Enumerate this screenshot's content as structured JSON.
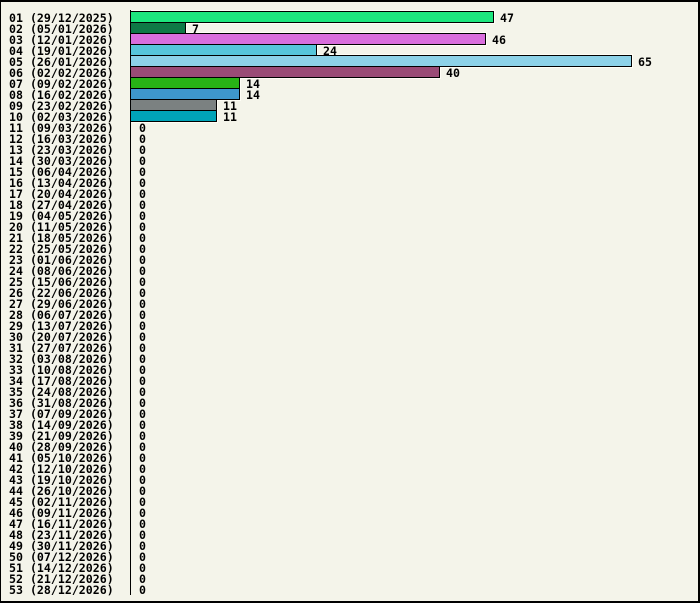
{
  "chart_data": {
    "type": "bar",
    "orientation": "horizontal",
    "title": "",
    "xlabel": "",
    "ylabel": "",
    "x_range_units": [
      0,
      65
    ],
    "grid": "off",
    "legend": "none",
    "categories": [
      "01 (29/12/2025)",
      "02 (05/01/2026)",
      "03 (12/01/2026)",
      "04 (19/01/2026)",
      "05 (26/01/2026)",
      "06 (02/02/2026)",
      "07 (09/02/2026)",
      "08 (16/02/2026)",
      "09 (23/02/2026)",
      "10 (02/03/2026)",
      "11 (09/03/2026)",
      "12 (16/03/2026)",
      "13 (23/03/2026)",
      "14 (30/03/2026)",
      "15 (06/04/2026)",
      "16 (13/04/2026)",
      "17 (20/04/2026)",
      "18 (27/04/2026)",
      "19 (04/05/2026)",
      "20 (11/05/2026)",
      "21 (18/05/2026)",
      "22 (25/05/2026)",
      "23 (01/06/2026)",
      "24 (08/06/2026)",
      "25 (15/06/2026)",
      "26 (22/06/2026)",
      "27 (29/06/2026)",
      "28 (06/07/2026)",
      "29 (13/07/2026)",
      "30 (20/07/2026)",
      "31 (27/07/2026)",
      "32 (03/08/2026)",
      "33 (10/08/2026)",
      "34 (17/08/2026)",
      "35 (24/08/2026)",
      "36 (31/08/2026)",
      "37 (07/09/2026)",
      "38 (14/09/2026)",
      "39 (21/09/2026)",
      "40 (28/09/2026)",
      "41 (05/10/2026)",
      "42 (12/10/2026)",
      "43 (19/10/2026)",
      "44 (26/10/2026)",
      "45 (02/11/2026)",
      "46 (09/11/2026)",
      "47 (16/11/2026)",
      "48 (23/11/2026)",
      "49 (30/11/2026)",
      "50 (07/12/2026)",
      "51 (14/12/2026)",
      "52 (21/12/2026)",
      "53 (28/12/2026)"
    ],
    "week_numbers": [
      "01",
      "02",
      "03",
      "04",
      "05",
      "06",
      "07",
      "08",
      "09",
      "10",
      "11",
      "12",
      "13",
      "14",
      "15",
      "16",
      "17",
      "18",
      "19",
      "20",
      "21",
      "22",
      "23",
      "24",
      "25",
      "26",
      "27",
      "28",
      "29",
      "30",
      "31",
      "32",
      "33",
      "34",
      "35",
      "36",
      "37",
      "38",
      "39",
      "40",
      "41",
      "42",
      "43",
      "44",
      "45",
      "46",
      "47",
      "48",
      "49",
      "50",
      "51",
      "52",
      "53"
    ],
    "week_start_dates": [
      "29/12/2025",
      "05/01/2026",
      "12/01/2026",
      "19/01/2026",
      "26/01/2026",
      "02/02/2026",
      "09/02/2026",
      "16/02/2026",
      "23/02/2026",
      "02/03/2026",
      "09/03/2026",
      "16/03/2026",
      "23/03/2026",
      "30/03/2026",
      "06/04/2026",
      "13/04/2026",
      "20/04/2026",
      "27/04/2026",
      "04/05/2026",
      "11/05/2026",
      "18/05/2026",
      "25/05/2026",
      "01/06/2026",
      "08/06/2026",
      "15/06/2026",
      "22/06/2026",
      "29/06/2026",
      "06/07/2026",
      "13/07/2026",
      "20/07/2026",
      "27/07/2026",
      "03/08/2026",
      "10/08/2026",
      "17/08/2026",
      "24/08/2026",
      "31/08/2026",
      "07/09/2026",
      "14/09/2026",
      "21/09/2026",
      "28/09/2026",
      "05/10/2026",
      "12/10/2026",
      "19/10/2026",
      "26/10/2026",
      "02/11/2026",
      "09/11/2026",
      "16/11/2026",
      "23/11/2026",
      "30/11/2026",
      "07/12/2026",
      "14/12/2026",
      "21/12/2026",
      "28/12/2026"
    ],
    "values": [
      47,
      7,
      46,
      24,
      65,
      40,
      14,
      14,
      11,
      11,
      0,
      0,
      0,
      0,
      0,
      0,
      0,
      0,
      0,
      0,
      0,
      0,
      0,
      0,
      0,
      0,
      0,
      0,
      0,
      0,
      0,
      0,
      0,
      0,
      0,
      0,
      0,
      0,
      0,
      0,
      0,
      0,
      0,
      0,
      0,
      0,
      0,
      0,
      0,
      0,
      0,
      0,
      0
    ],
    "value_labels": [
      "47",
      "7",
      "46",
      "24",
      "65",
      "40",
      "14",
      "14",
      "11",
      "11",
      "0",
      "0",
      "0",
      "0",
      "0",
      "0",
      "0",
      "0",
      "0",
      "0",
      "0",
      "0",
      "0",
      "0",
      "0",
      "0",
      "0",
      "0",
      "0",
      "0",
      "0",
      "0",
      "0",
      "0",
      "0",
      "0",
      "0",
      "0",
      "0",
      "0",
      "0",
      "0",
      "0",
      "0",
      "0",
      "0",
      "0",
      "0",
      "0",
      "0",
      "0",
      "0",
      "0"
    ],
    "bar_colors": [
      "#1DE67E",
      "#0E7946",
      "#D96EDD",
      "#57C5DA",
      "#8DD2E8",
      "#9A4B76",
      "#28B316",
      "#3E97CC",
      "#7B8181",
      "#00A4B8",
      null,
      null,
      null,
      null,
      null,
      null,
      null,
      null,
      null,
      null,
      null,
      null,
      null,
      null,
      null,
      null,
      null,
      null,
      null,
      null,
      null,
      null,
      null,
      null,
      null,
      null,
      null,
      null,
      null,
      null,
      null,
      null,
      null,
      null,
      null,
      null,
      null,
      null,
      null,
      null,
      null,
      null,
      null
    ]
  },
  "colors": {
    "background": "#F4F4EA",
    "window_border": "#000000",
    "axis_line": "#000000",
    "bar_outline": "#000000",
    "bar_halo": "#FFFEF6",
    "text": "#000000"
  }
}
